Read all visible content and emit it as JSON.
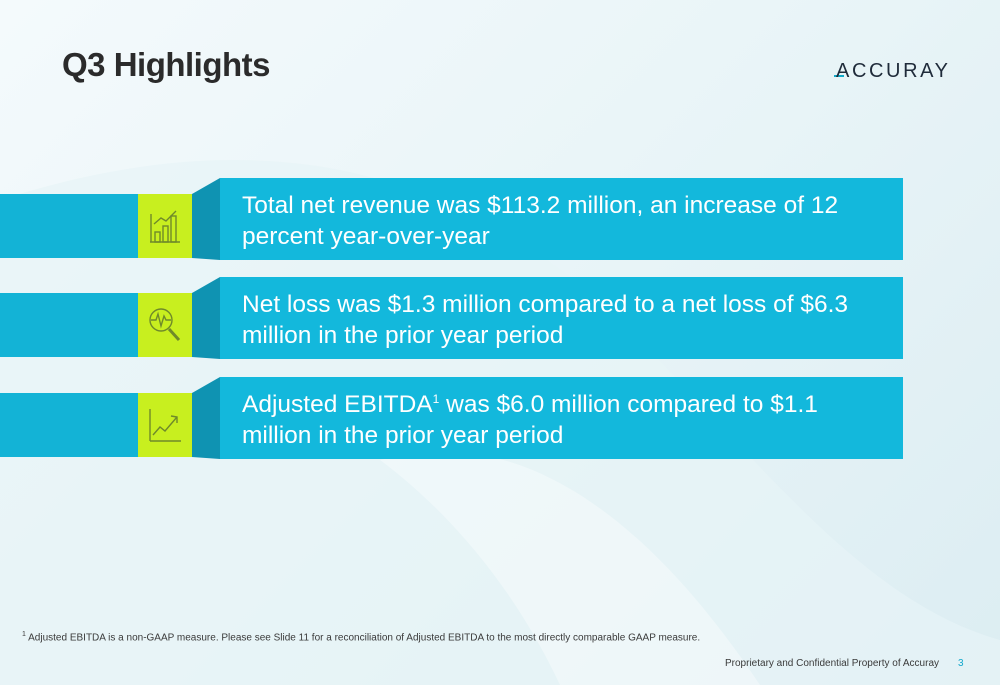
{
  "slide": {
    "title": "Q3 Highlights",
    "logo_text": "ACCURAY",
    "highlights": [
      {
        "text": "Total net revenue was $113.2 million, an increase of 12 percent year-over-year",
        "icon": "bar-chart-icon"
      },
      {
        "text": "Net loss was $1.3 million compared to a net loss of $6.3 million in the prior year period",
        "icon": "magnifier-pulse-icon"
      },
      {
        "text_before": "Adjusted EBITDA",
        "sup": "1",
        "text_after": " was $6.0 million compared to $1.1 million in the prior year period",
        "icon": "trend-up-icon"
      }
    ],
    "footnote": {
      "sup": "1",
      "text": " Adjusted EBITDA is a non-GAAP measure.  Please see Slide 11 for a reconciliation of Adjusted EBITDA to the most directly comparable GAAP measure."
    },
    "footer_text": "Proprietary and Confidential Property of Accuray",
    "page_number": "3"
  },
  "colors": {
    "band": "#13b8dc",
    "band_dark": "#0f93b2",
    "icon_bg": "#c8ef1f",
    "title": "#2b2b2b"
  }
}
